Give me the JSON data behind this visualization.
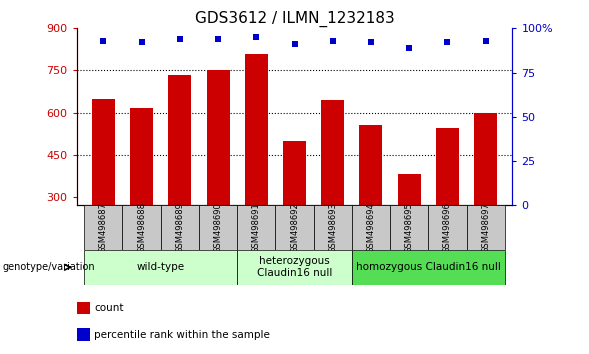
{
  "title": "GDS3612 / ILMN_1232183",
  "samples": [
    "GSM498687",
    "GSM498688",
    "GSM498689",
    "GSM498690",
    "GSM498691",
    "GSM498692",
    "GSM498693",
    "GSM498694",
    "GSM498695",
    "GSM498696",
    "GSM498697"
  ],
  "bar_values": [
    650,
    615,
    735,
    750,
    810,
    500,
    645,
    555,
    380,
    545,
    600
  ],
  "dot_values": [
    93,
    92,
    94,
    94,
    95,
    91,
    93,
    92,
    89,
    92,
    93
  ],
  "bar_color": "#cc0000",
  "dot_color": "#0000cc",
  "ylim_left": [
    270,
    900
  ],
  "ylim_right": [
    0,
    100
  ],
  "yticks_left": [
    300,
    450,
    600,
    750,
    900
  ],
  "yticks_right": [
    0,
    25,
    50,
    75,
    100
  ],
  "grid_values": [
    450,
    600,
    750
  ],
  "group_defs": [
    {
      "start": 0,
      "end": 3,
      "label": "wild-type",
      "color": "#ccffcc"
    },
    {
      "start": 4,
      "end": 6,
      "label": "heterozygous\nClaudin16 null",
      "color": "#ccffcc"
    },
    {
      "start": 7,
      "end": 10,
      "label": "homozygous Claudin16 null",
      "color": "#55dd55"
    }
  ],
  "legend_items": [
    {
      "label": "count",
      "color": "#cc0000"
    },
    {
      "label": "percentile rank within the sample",
      "color": "#0000cc"
    }
  ],
  "genotype_label": "genotype/variation",
  "bar_color_sample": "#c8c8c8",
  "bar_width": 0.6,
  "title_fontsize": 11,
  "tick_fontsize": 8,
  "sample_fontsize": 6,
  "group_fontsize": 7.5,
  "legend_fontsize": 7.5
}
